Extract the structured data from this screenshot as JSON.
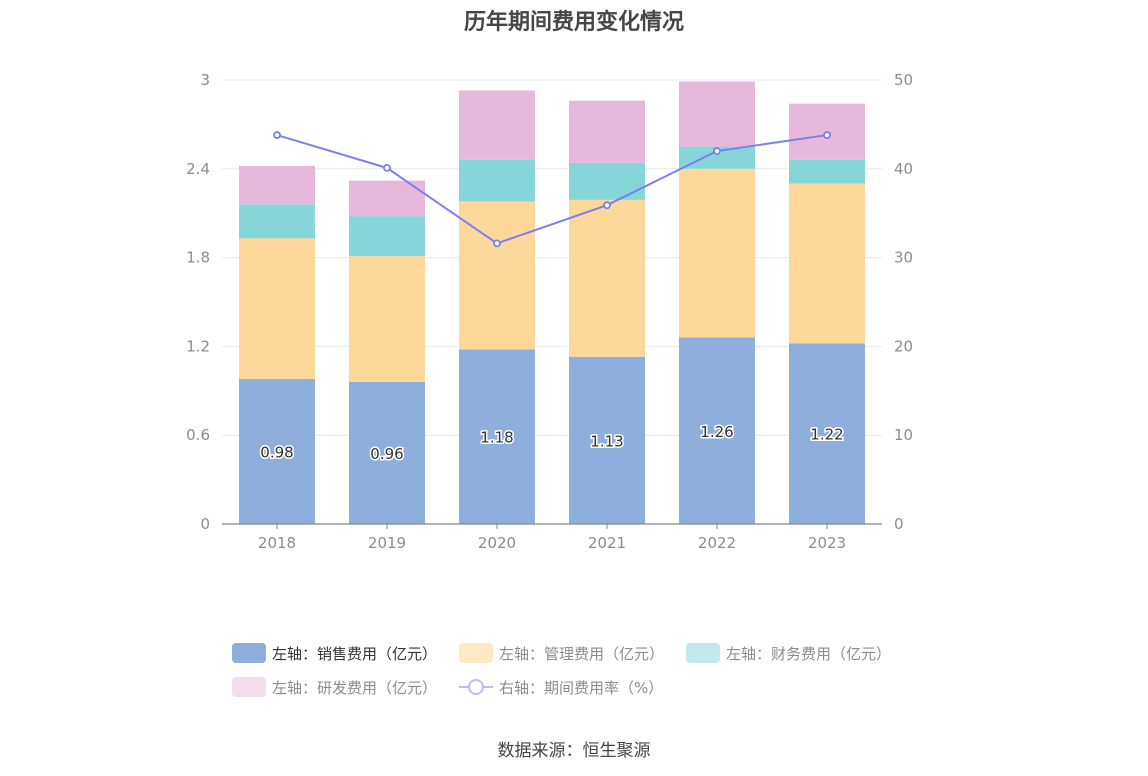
{
  "chart_data": {
    "type": "bar",
    "title": "历年期间费用变化情况",
    "categories": [
      "2018",
      "2019",
      "2020",
      "2021",
      "2022",
      "2023"
    ],
    "stacked": true,
    "y_left": {
      "ticks": [
        "0",
        "0.6",
        "1.2",
        "1.8",
        "2.4",
        "3"
      ],
      "ylim": [
        0,
        3
      ]
    },
    "y_right": {
      "ticks": [
        "0",
        "10",
        "20",
        "30",
        "40",
        "50"
      ],
      "ylim": [
        0,
        50
      ]
    },
    "series": [
      {
        "name": "左轴：销售费用（亿元）",
        "axis": "left",
        "color": "#8eaedb",
        "values": [
          0.98,
          0.96,
          1.18,
          1.13,
          1.26,
          1.22
        ],
        "labels": [
          "0.98",
          "0.96",
          "1.18",
          "1.13",
          "1.26",
          "1.22"
        ]
      },
      {
        "name": "左轴：管理费用（亿元）",
        "axis": "left",
        "color": "#fed89b",
        "values": [
          0.95,
          0.85,
          1.0,
          1.06,
          1.14,
          1.08
        ]
      },
      {
        "name": "左轴：财务费用（亿元）",
        "axis": "left",
        "color": "#86d5d9",
        "values": [
          0.23,
          0.27,
          0.28,
          0.25,
          0.15,
          0.16
        ]
      },
      {
        "name": "左轴：研发费用（亿元）",
        "axis": "left",
        "color": "#e6b8da",
        "values": [
          0.26,
          0.24,
          0.47,
          0.42,
          0.44,
          0.38
        ]
      },
      {
        "name": "右轴：期间费用率（%）",
        "axis": "right",
        "type": "line",
        "color": "#7b7ff0",
        "values": [
          43.8,
          40.1,
          31.6,
          35.9,
          42.0,
          43.8
        ]
      }
    ],
    "grid": true,
    "legend_position": "bottom"
  },
  "source": "数据来源：恒生聚源"
}
